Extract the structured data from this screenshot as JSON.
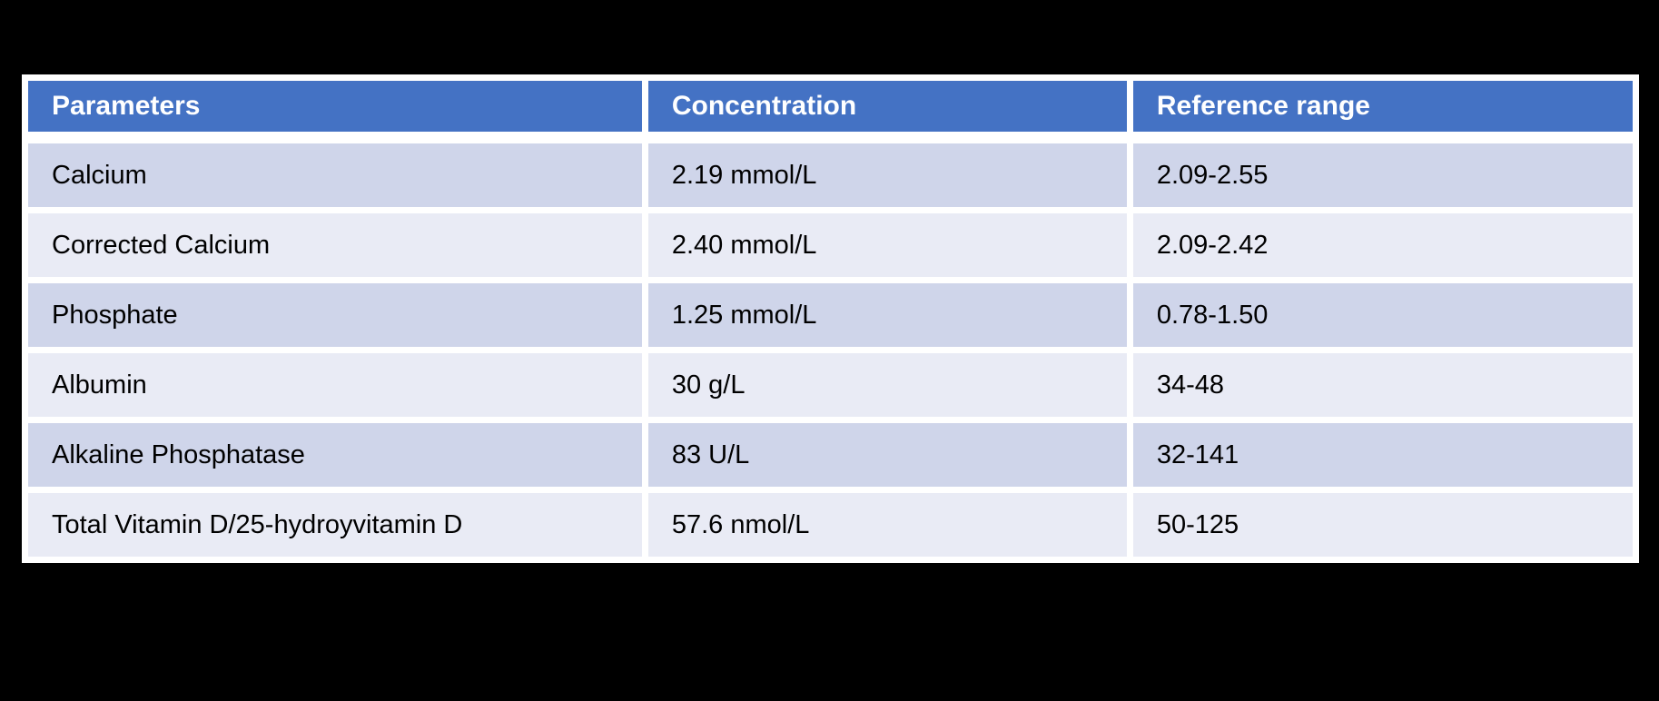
{
  "table": {
    "headers": [
      "Parameters",
      "Concentration",
      "Reference range"
    ],
    "rows": [
      {
        "parameter": "Calcium",
        "concentration": "2.19 mmol/L",
        "reference_range": "2.09-2.55"
      },
      {
        "parameter": "Corrected Calcium",
        "concentration": "2.40 mmol/L",
        "reference_range": "2.09-2.42"
      },
      {
        "parameter": "Phosphate",
        "concentration": "1.25 mmol/L",
        "reference_range": "0.78-1.50"
      },
      {
        "parameter": "Albumin",
        "concentration": "30 g/L",
        "reference_range": "34-48"
      },
      {
        "parameter": "Alkaline Phosphatase",
        "concentration": "83 U/L",
        "reference_range": "32-141"
      },
      {
        "parameter": "Total Vitamin D/25-hydroyvitamin D",
        "concentration": "57.6 nmol/L",
        "reference_range": "50-125"
      }
    ]
  },
  "colors": {
    "page_bg": "#000000",
    "table_border": "#ffffff",
    "header_bg": "#4472c4",
    "header_text": "#ffffff",
    "band_dark": "#cfd5ea",
    "band_light": "#e9ebf5",
    "body_text": "#000000"
  }
}
